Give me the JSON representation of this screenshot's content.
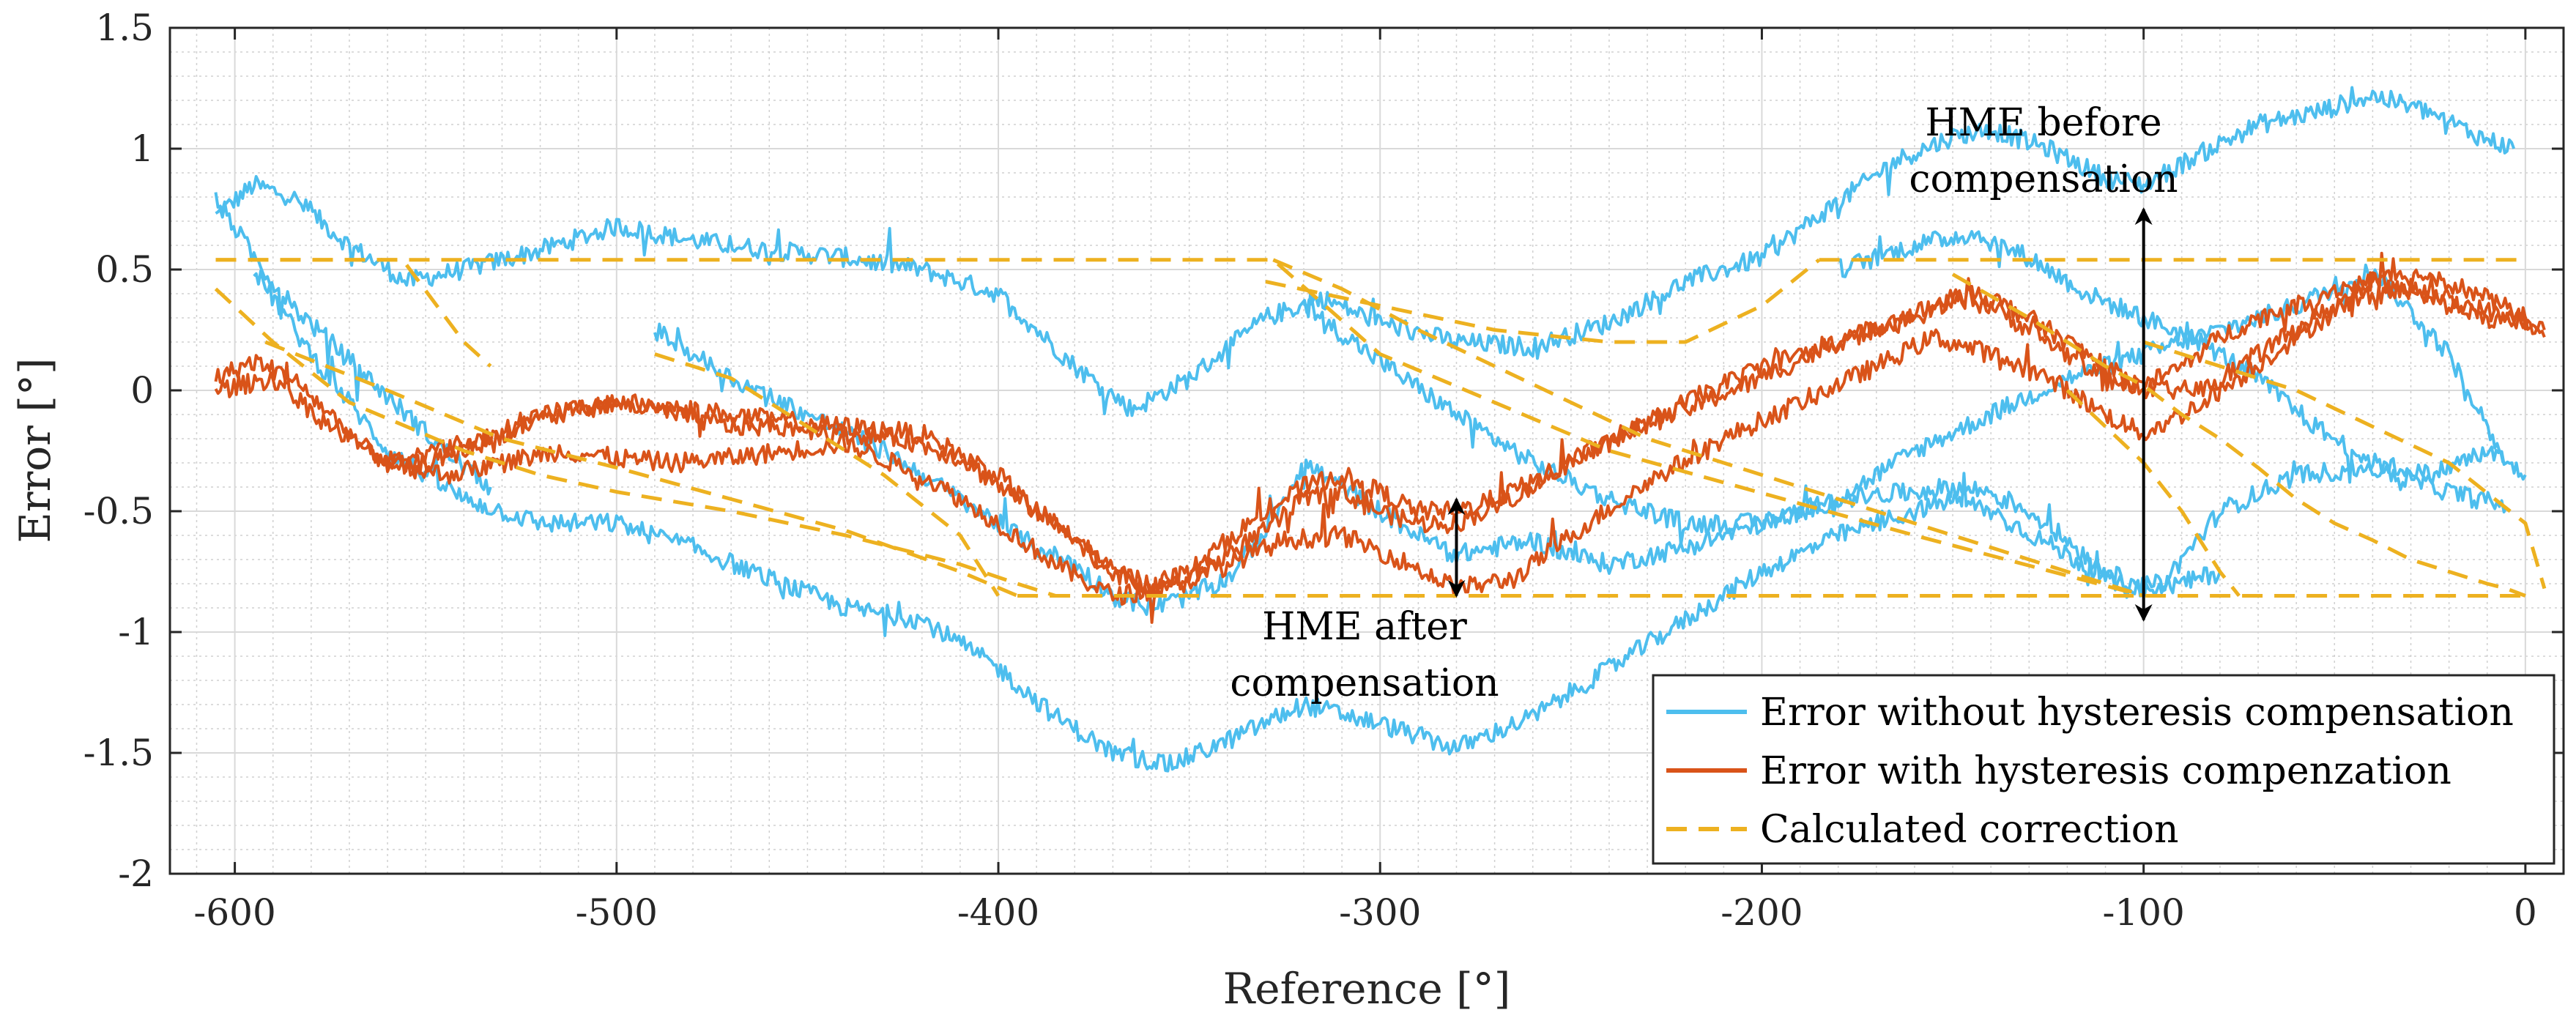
{
  "chart_data": {
    "type": "line",
    "title": "",
    "xlabel": "Reference [°]",
    "ylabel": "Error [°]",
    "xlim": [
      -617,
      10
    ],
    "ylim": [
      -2,
      1.5
    ],
    "xticks": [
      -600,
      -500,
      -400,
      -300,
      -200,
      -100,
      0
    ],
    "yticks": [
      1.5,
      1,
      0.5,
      0,
      -0.5,
      -1,
      -1.5,
      -2
    ],
    "xtick_labels": [
      "-600",
      "-500",
      "-400",
      "-300",
      "-200",
      "-100",
      "0"
    ],
    "ytick_labels": [
      "1.5",
      "1",
      "0.5",
      "0",
      "-0.5",
      "-1",
      "-1.5",
      "-2"
    ],
    "grid": true,
    "minor_grid": true,
    "legend_position": "bottom-right",
    "series": [
      {
        "name": "Error without hysteresis compensation",
        "color": "#4DBEEE",
        "style": "solid",
        "noise": 0.04,
        "segments": [
          {
            "x": [
              -605,
              -595,
              -585,
              -570,
              -555,
              -540,
              -520,
              -500,
              -480,
              -460,
              -440,
              -420,
              -400,
              -380,
              -365,
              -350,
              -330,
              -315,
              -300,
              -280,
              -260,
              -240,
              -220,
              -200,
              -180,
              -165,
              -150,
              -140,
              -125,
              -110,
              -100,
              -85,
              -70,
              -55,
              -40,
              -25,
              -12,
              -3
            ],
            "y": [
              0.72,
              0.85,
              0.8,
              0.6,
              0.45,
              0.5,
              0.58,
              0.68,
              0.62,
              0.58,
              0.55,
              0.5,
              0.4,
              0.1,
              -0.08,
              0.05,
              0.3,
              0.38,
              0.28,
              0.2,
              0.18,
              0.28,
              0.45,
              0.55,
              0.78,
              0.95,
              1.05,
              1.08,
              1.0,
              0.88,
              0.85,
              0.98,
              1.1,
              1.15,
              1.22,
              1.15,
              1.05,
              1.0
            ]
          },
          {
            "x": [
              -605,
              -595,
              -585,
              -575,
              -565,
              -555,
              -545,
              -533
            ],
            "y": [
              0.8,
              0.55,
              0.35,
              0.2,
              0.05,
              -0.1,
              -0.25,
              -0.4
            ]
          },
          {
            "x": [
              -595,
              -580,
              -560,
              -540,
              -520,
              -500,
              -480,
              -460,
              -440,
              -420,
              -400,
              -385,
              -370,
              -355,
              -340,
              -320,
              -300,
              -280,
              -260,
              -240,
              -220,
              -200,
              -180,
              -160,
              -150,
              -140,
              -120,
              -105,
              -95,
              -80,
              -60,
              -40,
              -20,
              -5
            ],
            "y": [
              0.5,
              0.15,
              -0.25,
              -0.45,
              -0.55,
              -0.55,
              -0.65,
              -0.78,
              -0.9,
              -0.95,
              -1.15,
              -1.35,
              -1.5,
              -1.55,
              -1.45,
              -1.3,
              -1.38,
              -1.48,
              -1.35,
              -1.15,
              -0.95,
              -0.75,
              -0.6,
              -0.5,
              -0.45,
              -0.5,
              -0.68,
              -0.82,
              -0.8,
              -0.5,
              -0.35,
              -0.32,
              -0.42,
              -0.48
            ]
          },
          {
            "x": [
              -490,
              -470,
              -450,
              -430,
              -410,
              -400,
              -390,
              -380,
              -370,
              -360,
              -350,
              -340,
              -330,
              -320,
              -310,
              -300,
              -290,
              -280,
              -270,
              -260,
              -250,
              -240,
              -220,
              -200,
              -180,
              -160,
              -150,
              -140,
              -130,
              -120,
              -110,
              -100,
              -90,
              -80
            ],
            "y": [
              0.25,
              0.05,
              -0.1,
              -0.25,
              -0.45,
              -0.55,
              -0.65,
              -0.72,
              -0.85,
              -0.9,
              -0.85,
              -0.78,
              -0.58,
              -0.3,
              -0.4,
              -0.5,
              -0.6,
              -0.68,
              -0.65,
              -0.62,
              -0.68,
              -0.72,
              -0.65,
              -0.55,
              -0.45,
              -0.42,
              -0.4,
              -0.42,
              -0.5,
              -0.62,
              -0.75,
              -0.82,
              -0.8,
              -0.75
            ]
          },
          {
            "x": [
              -320,
              -300,
              -280,
              -260,
              -240,
              -220,
              -200,
              -180,
              -160,
              -140,
              -120,
              -100,
              -80,
              -60,
              -40,
              -20,
              -5
            ],
            "y": [
              0.35,
              0.12,
              -0.1,
              -0.3,
              -0.45,
              -0.55,
              -0.55,
              -0.45,
              -0.25,
              -0.1,
              0.05,
              0.15,
              0.25,
              0.35,
              0.5,
              0.15,
              -0.3
            ]
          },
          {
            "x": [
              -180,
              -160,
              -145,
              -130,
              -115,
              -100,
              -85,
              -70,
              -55,
              -40,
              -25,
              -10,
              0
            ],
            "y": [
              0.5,
              0.6,
              0.65,
              0.55,
              0.4,
              0.3,
              0.2,
              0.05,
              -0.15,
              -0.3,
              -0.35,
              -0.25,
              -0.35
            ]
          }
        ]
      },
      {
        "name": "Error with hysteresis compenzation",
        "color": "#D95319",
        "style": "solid",
        "noise": 0.04,
        "segments": [
          {
            "x": [
              -605,
              -595,
              -585,
              -575,
              -565,
              -555,
              -545,
              -530,
              -515,
              -500,
              -485,
              -470,
              -455,
              -440,
              -425,
              -410,
              -395,
              -380,
              -370,
              -360,
              -350,
              -340,
              -330,
              -320,
              -310,
              -300,
              -290,
              -280,
              -270,
              -260,
              -250,
              -240,
              -220,
              -200,
              -180,
              -160,
              -150,
              -140,
              -130,
              -120,
              -110,
              -100,
              -90,
              -80,
              -70,
              -60,
              -50,
              -40,
              -30,
              -20,
              -10,
              0,
              5
            ],
            "y": [
              0.05,
              0.12,
              0.05,
              -0.1,
              -0.25,
              -0.32,
              -0.28,
              -0.18,
              -0.08,
              -0.05,
              -0.1,
              -0.15,
              -0.15,
              -0.18,
              -0.2,
              -0.28,
              -0.45,
              -0.6,
              -0.75,
              -0.82,
              -0.78,
              -0.68,
              -0.58,
              -0.45,
              -0.42,
              -0.5,
              -0.55,
              -0.55,
              -0.48,
              -0.4,
              -0.28,
              -0.2,
              -0.08,
              0.05,
              0.2,
              0.32,
              0.38,
              0.35,
              0.25,
              0.15,
              0.05,
              0.02,
              0.1,
              0.22,
              0.3,
              0.35,
              0.42,
              0.45,
              0.4,
              0.35,
              0.3,
              0.28,
              0.25
            ]
          },
          {
            "x": [
              -605,
              -590,
              -575,
              -560,
              -545,
              -530,
              -515,
              -500,
              -485,
              -470,
              -455,
              -440,
              -420,
              -400,
              -385,
              -370,
              -355,
              -340,
              -325,
              -310,
              -295,
              -280,
              -265,
              -250,
              -230,
              -210,
              -190,
              -170,
              -155,
              -140,
              -125,
              -110,
              -100,
              -90,
              -75,
              -60,
              -45,
              -30,
              -15,
              0,
              5
            ],
            "y": [
              0.0,
              0.05,
              -0.15,
              -0.3,
              -0.35,
              -0.3,
              -0.25,
              -0.28,
              -0.3,
              -0.28,
              -0.25,
              -0.22,
              -0.35,
              -0.55,
              -0.72,
              -0.85,
              -0.82,
              -0.72,
              -0.62,
              -0.6,
              -0.7,
              -0.82,
              -0.78,
              -0.6,
              -0.38,
              -0.2,
              -0.05,
              0.1,
              0.22,
              0.15,
              0.05,
              -0.1,
              -0.18,
              -0.1,
              0.05,
              0.22,
              0.38,
              0.42,
              0.35,
              0.28,
              0.22
            ]
          },
          {
            "x": [
              -560,
              -540,
              -520,
              -500,
              -480,
              -460,
              -440,
              -420,
              -400,
              -390,
              -380,
              -370,
              -360,
              -350,
              -340,
              -330,
              -320,
              -310,
              -300,
              -290,
              -280,
              -270,
              -260,
              -240,
              -220,
              -200,
              -180,
              -160,
              -145,
              -130,
              -115,
              -100,
              -85,
              -70,
              -55,
              -40,
              -25,
              -10,
              0
            ],
            "y": [
              -0.3,
              -0.22,
              -0.12,
              -0.05,
              -0.08,
              -0.12,
              -0.15,
              -0.18,
              -0.35,
              -0.5,
              -0.62,
              -0.75,
              -0.8,
              -0.75,
              -0.62,
              -0.5,
              -0.4,
              -0.35,
              -0.42,
              -0.5,
              -0.5,
              -0.45,
              -0.38,
              -0.22,
              -0.05,
              0.1,
              0.2,
              0.3,
              0.42,
              0.3,
              0.15,
              0.0,
              0.0,
              0.15,
              0.3,
              0.45,
              0.48,
              0.38,
              0.3
            ]
          }
        ]
      },
      {
        "name": "Calculated correction",
        "color": "#EDB120",
        "style": "dashed",
        "noise": 0,
        "segments": [
          {
            "x": [
              -605,
              -328,
              -300,
              -240,
              -160,
              -100
            ],
            "y": [
              0.54,
              0.54,
              0.15,
              -0.25,
              -0.6,
              -0.85
            ]
          },
          {
            "x": [
              -605,
              -556,
              -540,
              -533
            ],
            "y": [
              0.54,
              0.54,
              0.2,
              0.1
            ]
          },
          {
            "x": [
              -605,
              -590,
              -570,
              -540,
              -520,
              -500,
              -470,
              -440,
              -410,
              -395,
              -385
            ],
            "y": [
              0.42,
              0.2,
              -0.05,
              -0.25,
              -0.35,
              -0.42,
              -0.5,
              -0.6,
              -0.72,
              -0.8,
              -0.85
            ]
          },
          {
            "x": [
              -592,
              -560,
              -530,
              -500,
              -470,
              -440,
              -410,
              -395
            ],
            "y": [
              0.2,
              0.0,
              -0.2,
              -0.32,
              -0.45,
              -0.58,
              -0.75,
              -0.85
            ]
          },
          {
            "x": [
              -490,
              -470,
              -450,
              -430,
              -410,
              -400
            ],
            "y": [
              0.15,
              0.05,
              -0.15,
              -0.35,
              -0.6,
              -0.85
            ]
          },
          {
            "x": [
              -395,
              0
            ],
            "y": [
              -0.85,
              -0.85
            ]
          },
          {
            "x": [
              -328,
              -310,
              -290,
              -270,
              -250,
              -230,
              -200,
              -170,
              -150,
              -130,
              -110,
              -100
            ],
            "y": [
              0.54,
              0.42,
              0.25,
              0.1,
              -0.05,
              -0.2,
              -0.35,
              -0.5,
              -0.6,
              -0.7,
              -0.8,
              -0.85
            ]
          },
          {
            "x": [
              -330,
              -300,
              -270,
              -240,
              -220,
              -200,
              -185
            ],
            "y": [
              0.45,
              0.35,
              0.25,
              0.2,
              0.2,
              0.35,
              0.54
            ]
          },
          {
            "x": [
              -185,
              0
            ],
            "y": [
              0.54,
              0.54
            ]
          },
          {
            "x": [
              -150,
              -130,
              -110,
              -100,
              -90,
              -80,
              -70,
              -60,
              -50,
              -40,
              -30,
              -20,
              -10,
              -5,
              0
            ],
            "y": [
              0.48,
              0.3,
              0.1,
              0.02,
              -0.1,
              -0.2,
              -0.32,
              -0.45,
              -0.55,
              -0.62,
              -0.7,
              -0.75,
              -0.8,
              -0.82,
              -0.85
            ]
          },
          {
            "x": [
              -100,
              -80,
              -60,
              -40,
              -20,
              0,
              5
            ],
            "y": [
              0.2,
              0.1,
              0.0,
              -0.15,
              -0.3,
              -0.55,
              -0.82
            ]
          },
          {
            "x": [
              -120,
              -100,
              -90,
              -80,
              -75
            ],
            "y": [
              0.0,
              -0.3,
              -0.5,
              -0.75,
              -0.85
            ]
          }
        ]
      }
    ],
    "annotations": [
      {
        "name": "hme-before",
        "lines": [
          "HME before",
          "compensation"
        ],
        "arrow_x": -100,
        "arrow_y": [
          0.75,
          -0.95
        ]
      },
      {
        "name": "hme-after",
        "lines": [
          "HME after",
          "compensation"
        ],
        "arrow_x": -280,
        "arrow_y": [
          -0.45,
          -0.85
        ]
      }
    ]
  }
}
